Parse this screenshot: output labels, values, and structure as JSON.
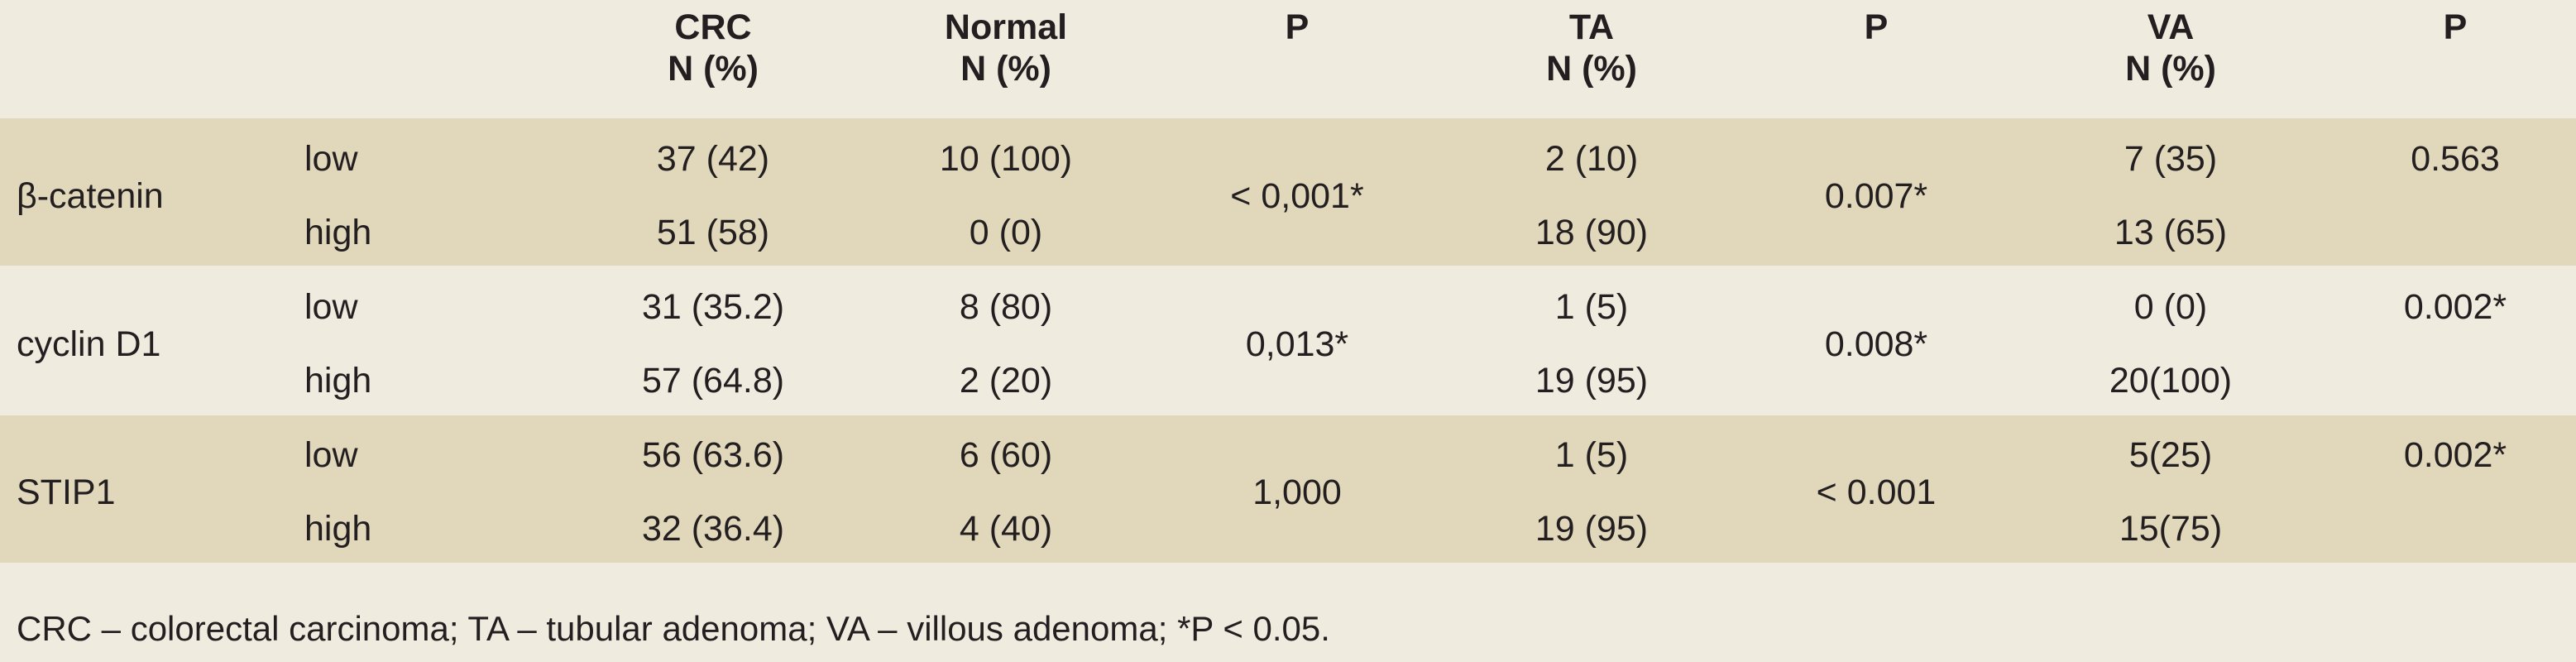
{
  "header": {
    "crc_line1": "CRC",
    "crc_line2": "N (%)",
    "normal_line1": "Normal",
    "normal_line2": "N  (%)",
    "p1": "P",
    "ta_line1": "TA",
    "ta_line2": "N  (%)",
    "p2": "P",
    "va_line1": "VA",
    "va_line2": "N  (%)",
    "p3": "P"
  },
  "rows": [
    {
      "marker": "β-catenin",
      "low": {
        "level": "low",
        "crc": "37 (42)",
        "normal": "10 (100)",
        "ta": "2 (10)",
        "va": "7 (35)"
      },
      "high": {
        "level": "high",
        "crc": "51 (58)",
        "normal": "0 (0)",
        "ta": "18 (90)",
        "va": "13 (65)"
      },
      "p_normal": "< 0,001*",
      "p_ta": "0.007*",
      "p_va": "0.563"
    },
    {
      "marker": "cyclin D1",
      "low": {
        "level": "low",
        "crc": "31 (35.2)",
        "normal": "8 (80)",
        "ta": "1 (5)",
        "va": "0 (0)"
      },
      "high": {
        "level": "high",
        "crc": "57 (64.8)",
        "normal": "2 (20)",
        "ta": "19 (95)",
        "va": "20(100)"
      },
      "p_normal": "0,013*",
      "p_ta": "0.008*",
      "p_va": "0.002*"
    },
    {
      "marker": "STIP1",
      "low": {
        "level": "low",
        "crc": "56 (63.6)",
        "normal": "6 (60)",
        "ta": "1 (5)",
        "va": "5(25)"
      },
      "high": {
        "level": "high",
        "crc": "32 (36.4)",
        "normal": "4 (40)",
        "ta": "19 (95)",
        "va": "15(75)"
      },
      "p_normal": "1,000",
      "p_ta": "< 0.001",
      "p_va": "0.002*"
    }
  ],
  "footnote": "CRC – colorectal carcinoma; TA – tubular adenoma; VA – villous adenoma; *P < 0.05."
}
